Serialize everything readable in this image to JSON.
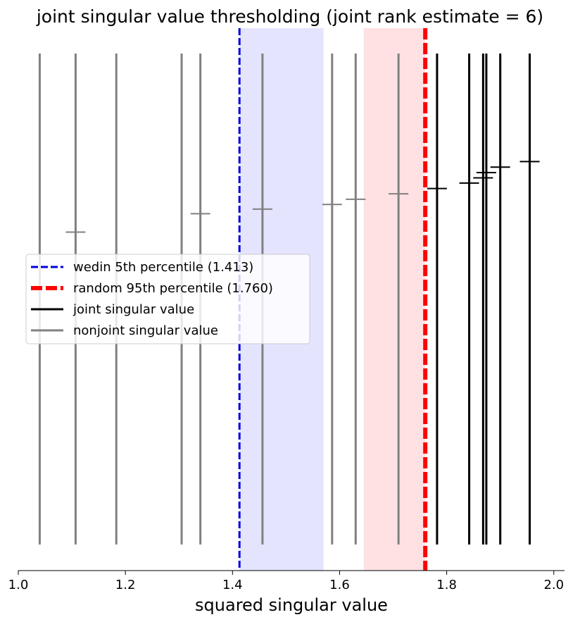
{
  "chart_data": {
    "type": "scatter",
    "title": "joint singular value thresholding (joint rank estimate = 6)",
    "xlabel": "squared singular value",
    "ylabel": "",
    "xlim": [
      1.0,
      2.02
    ],
    "x_ticks": [
      "1.0",
      "1.2",
      "1.4",
      "1.6",
      "1.8",
      "2.0"
    ],
    "x_tick_values": [
      1.0,
      1.2,
      1.4,
      1.6,
      1.8,
      2.0
    ],
    "grid": false,
    "legend_position": "center-left",
    "wedin_threshold": 1.413,
    "random_threshold": 1.76,
    "wedin_band": [
      1.413,
      1.57
    ],
    "random_band": [
      1.645,
      1.76
    ],
    "colors": {
      "wedin": "#0000dd",
      "random": "#ff0000",
      "joint": "#000000",
      "nonjoint": "#808080",
      "wedin_band": "#e4e4ff",
      "random_band": "#ffe1e3"
    },
    "nonjoint_values": [
      1.04,
      1.107,
      1.183,
      1.305,
      1.34,
      1.456,
      1.586,
      1.63,
      1.71
    ],
    "nonjoint_marker_levels": [
      0.0,
      0.53,
      0.0,
      0.0,
      0.59,
      0.605,
      0.62,
      0.637,
      0.655
    ],
    "joint_values": [
      1.782,
      1.842,
      1.868,
      1.874,
      1.9,
      1.955
    ],
    "joint_marker_levels": [
      0.672,
      0.69,
      0.707,
      0.724,
      0.742,
      0.76
    ],
    "legend": [
      {
        "label": "wedin 5th percentile (1.413)",
        "style": "wedin"
      },
      {
        "label": "random 95th percentile (1.760)",
        "style": "random"
      },
      {
        "label": "joint singular value",
        "style": "joint"
      },
      {
        "label": "nonjoint singular value",
        "style": "nonjoint"
      }
    ]
  }
}
